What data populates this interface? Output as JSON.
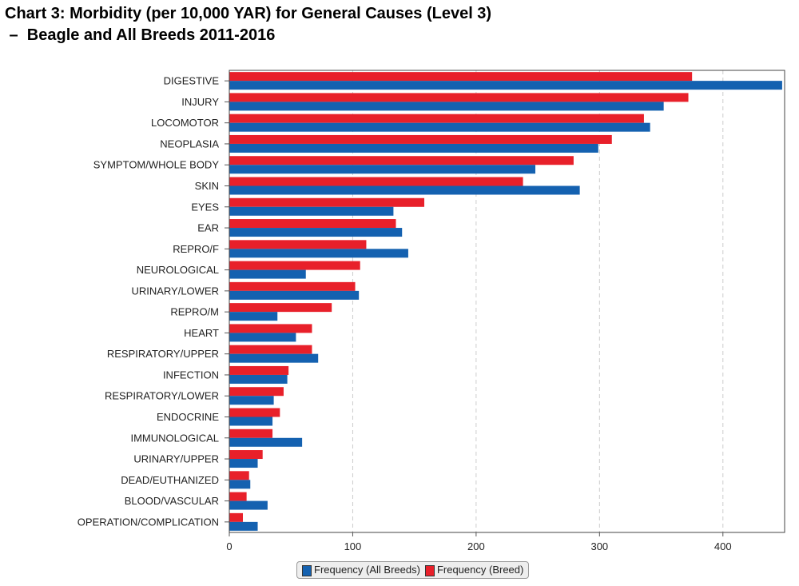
{
  "chart_data": {
    "type": "bar",
    "orientation": "horizontal",
    "title_line1": "Chart 3: Morbidity (per 10,000 YAR) for General Causes (Level 3)",
    "title_line2": " –  Beagle and All Breeds 2011-2016",
    "xlabel": "",
    "ylabel": "",
    "xlim": [
      0,
      450
    ],
    "xticks": [
      "0",
      "100",
      "200",
      "300",
      "400"
    ],
    "grid": true,
    "legend_position": "bottom",
    "categories": [
      "DIGESTIVE",
      "INJURY",
      "LOCOMOTOR",
      "NEOPLASIA",
      "SYMPTOM/WHOLE BODY",
      "SKIN",
      "EYES",
      "EAR",
      "REPRO/F",
      "NEUROLOGICAL",
      "URINARY/LOWER",
      "REPRO/M",
      "HEART",
      "RESPIRATORY/UPPER",
      "INFECTION",
      "RESPIRATORY/LOWER",
      "ENDOCRINE",
      "IMMUNOLOGICAL",
      "URINARY/UPPER",
      "DEAD/EUTHANIZED",
      "BLOOD/VASCULAR",
      "OPERATION/COMPLICATION"
    ],
    "series": [
      {
        "name": "Frequency (Breed)",
        "color": "#e8202a",
        "values": [
          375,
          372,
          336,
          310,
          279,
          238,
          158,
          135,
          111,
          106,
          102,
          83,
          67,
          67,
          48,
          44,
          41,
          35,
          27,
          16,
          14,
          11
        ]
      },
      {
        "name": "Frequency (All Breeds)",
        "color": "#1461b0",
        "values": [
          448,
          352,
          341,
          299,
          248,
          284,
          133,
          140,
          145,
          62,
          105,
          39,
          54,
          72,
          47,
          36,
          35,
          59,
          23,
          17,
          31,
          23
        ]
      }
    ],
    "legend": [
      "Frequency (All Breeds)",
      "Frequency (Breed)"
    ]
  }
}
